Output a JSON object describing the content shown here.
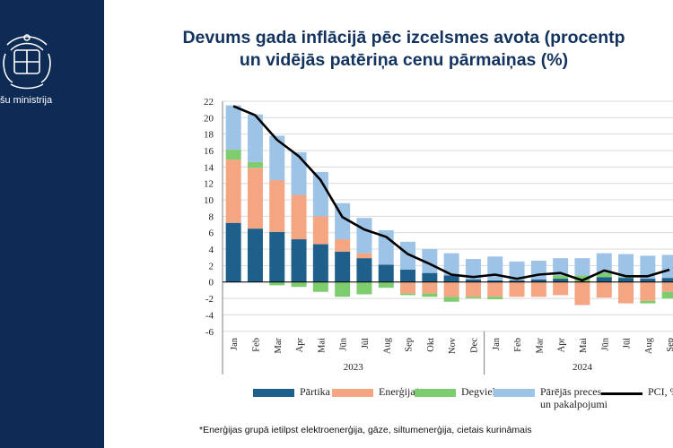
{
  "header": {
    "ministry_label": "šu ministrija",
    "title_line1": "Devums gada inflācijā pēc izcelsmes avota (procentp",
    "title_line2": "un vidējās patēriņa cenu pārmaiņas (%)"
  },
  "footnote": "*Enerģijas grupā ietilpst elektroenerģija, gāze, siltumenerģija, cietais kurināmais",
  "colors": {
    "sidebar": "#0d2b54",
    "partika": "#1f5f8b",
    "energija": "#f4a582",
    "degviela": "#7dcc6e",
    "parejas": "#9dc3e6",
    "pci": "#000000"
  },
  "chart_data": {
    "type": "bar",
    "stacked": true,
    "ylim": [
      -6,
      22
    ],
    "yticks": [
      "-6",
      "-4",
      "-2",
      "0",
      "2",
      "4",
      "6",
      "8",
      "10",
      "12",
      "14",
      "16",
      "18",
      "20",
      "22"
    ],
    "categories": [
      "Jan",
      "Feb",
      "Mar",
      "Apr",
      "Mai",
      "Jūn",
      "Jūl",
      "Aug",
      "Sep",
      "Okt",
      "Nov",
      "Dec",
      "Jan",
      "Feb",
      "Mar",
      "Apr",
      "Mai",
      "Jūn",
      "Jūl",
      "Aug",
      "Sep"
    ],
    "years": [
      {
        "label": "2023",
        "start": 0,
        "end": 11
      },
      {
        "label": "2024",
        "start": 12,
        "end": 20
      }
    ],
    "series": [
      {
        "name": "Pārtika",
        "key": "partika",
        "values": [
          7.2,
          6.5,
          6.1,
          5.2,
          4.6,
          3.7,
          2.9,
          2.1,
          1.5,
          1.1,
          0.8,
          0.3,
          0.2,
          0.2,
          0.3,
          0.4,
          0.1,
          0.6,
          0.5,
          0.4,
          0.5
        ]
      },
      {
        "name": "Enerģija*",
        "key": "energija",
        "values": [
          7.7,
          7.4,
          6.3,
          5.4,
          3.4,
          1.5,
          0.6,
          0.0,
          -1.4,
          -1.4,
          -1.8,
          -1.8,
          -1.8,
          -1.8,
          -1.8,
          -1.6,
          -2.8,
          -1.9,
          -2.6,
          -2.3,
          -1.2
        ]
      },
      {
        "name": "Degviela",
        "key": "degviela",
        "values": [
          1.2,
          0.7,
          -0.4,
          -0.6,
          -1.2,
          -1.8,
          -1.5,
          -0.7,
          -0.2,
          -0.4,
          -0.6,
          -0.2,
          -0.3,
          0.0,
          0.0,
          0.4,
          0.7,
          0.5,
          0.1,
          -0.3,
          -0.8
        ]
      },
      {
        "name": "Pārējās preces un pakalpojumi",
        "key": "parejas",
        "values": [
          5.4,
          5.8,
          5.4,
          5.2,
          5.4,
          4.4,
          4.3,
          4.2,
          3.4,
          2.9,
          2.7,
          2.5,
          2.9,
          2.3,
          2.3,
          2.1,
          2.1,
          2.4,
          2.8,
          2.8,
          2.8
        ]
      },
      {
        "name": "PCI, %",
        "key": "pci",
        "type": "line",
        "values": [
          21.4,
          20.3,
          17.3,
          15.3,
          12.4,
          7.9,
          6.4,
          5.5,
          3.4,
          2.2,
          0.9,
          0.6,
          0.9,
          0.4,
          0.9,
          1.1,
          0.2,
          1.4,
          0.7,
          0.7,
          1.5
        ]
      }
    ],
    "legend": [
      {
        "key": "partika",
        "label1": "Pārtika",
        "label2": ""
      },
      {
        "key": "energija",
        "label1": "Enerģija*",
        "label2": ""
      },
      {
        "key": "degviela",
        "label1": "Degviela",
        "label2": ""
      },
      {
        "key": "parejas",
        "label1": "Pārējās preces",
        "label2": "un pakalpojumi"
      },
      {
        "key": "pci",
        "label1": "PCI, %",
        "label2": ""
      }
    ]
  }
}
